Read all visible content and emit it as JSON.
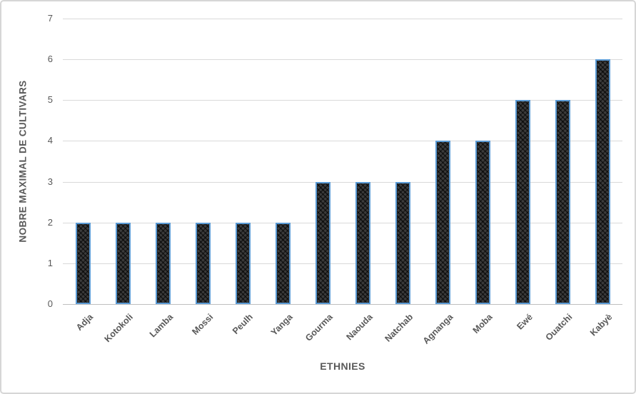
{
  "chart_data": {
    "type": "bar",
    "title": "",
    "xlabel": "ETHNIES",
    "ylabel": "NOBRE MAXIMAL DE CULTIVARS",
    "categories": [
      "Adja",
      "Kotokoli",
      "Lamba",
      "Mossi",
      "Peulh",
      "Yanga",
      "Gourma",
      "Naouda",
      "Natchab",
      "Agnanga",
      "Moba",
      "Ewé",
      "Ouatchi",
      "Kabyè"
    ],
    "values": [
      2,
      2,
      2,
      2,
      2,
      2,
      3,
      3,
      3,
      4,
      4,
      5,
      5,
      6
    ],
    "ylim": [
      0,
      7
    ],
    "yticks": [
      0,
      1,
      2,
      3,
      4,
      5,
      6,
      7
    ],
    "grid": true,
    "legend": false,
    "colors": {
      "bar_fill": "#2b2b2b",
      "bar_border": "#5b9bd5",
      "gridline": "#d9d9d9",
      "axis_line": "#bfbfbf",
      "text": "#595959",
      "frame_border": "#d6d6d6",
      "background": "#ffffff"
    }
  }
}
